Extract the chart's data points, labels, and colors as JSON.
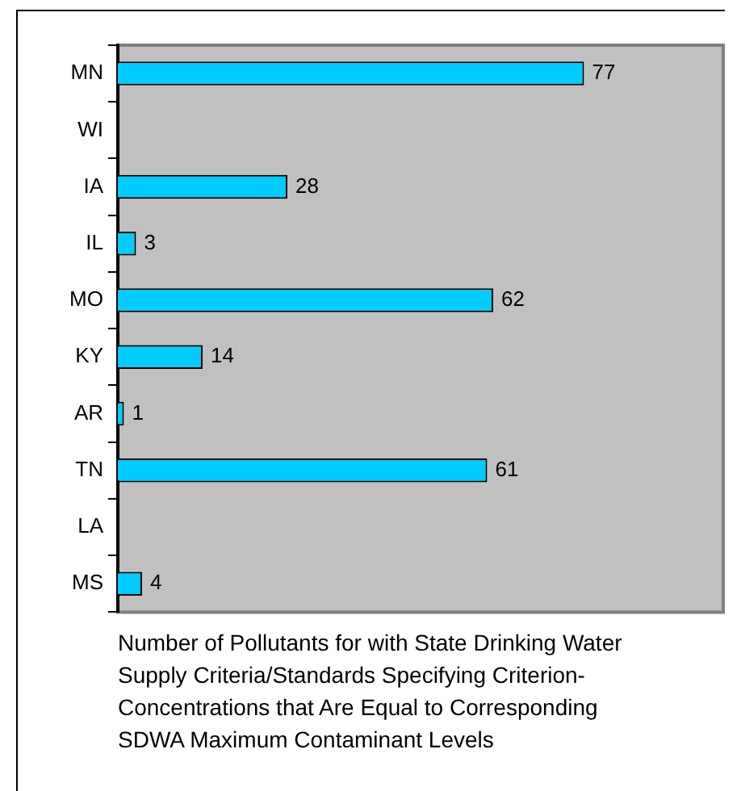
{
  "chart_data": {
    "type": "bar",
    "orientation": "horizontal",
    "categories": [
      "MN",
      "WI",
      "IA",
      "IL",
      "MO",
      "KY",
      "AR",
      "TN",
      "LA",
      "MS"
    ],
    "values": [
      77,
      null,
      28,
      3,
      62,
      14,
      1,
      61,
      null,
      4
    ],
    "color": "#00ccff",
    "xlim": [
      0,
      100
    ],
    "data_labels": true,
    "grid": false,
    "legend": false,
    "xlabel": "Number of Pollutants for with State Drinking Water Supply Criteria/Standards Specifying Criterion-Concentrations that Are Equal to Corresponding SDWA Maximum Contaminant Levels"
  }
}
